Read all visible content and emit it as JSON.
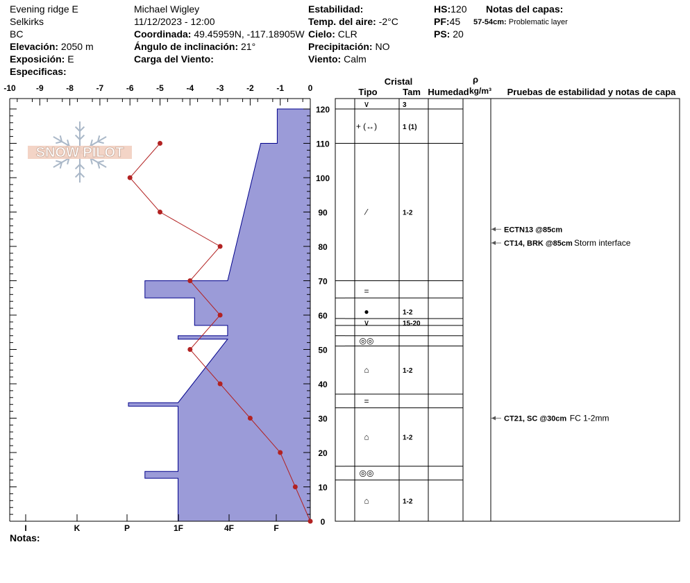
{
  "header": {
    "location": "Evening ridge E",
    "range": "Selkirks",
    "region": "BC",
    "elevation_label": "Elevación:",
    "elevation": "2050 m",
    "aspect_label": "Exposición:",
    "aspect": "E",
    "specifics_label": "Especificas:",
    "observer": "Michael Wigley",
    "datetime": "11/12/2023 - 12:00",
    "coord_label": "Coordinada:",
    "coords": "49.45959N, -117.18905W",
    "slope_label": "Ángulo de inclinación:",
    "slope": "21°",
    "wind_load_label": "Carga del Viento:",
    "stability_label": "Estabilidad:",
    "air_temp_label": "Temp. del aire:",
    "air_temp": "-2°C",
    "sky_label": "Cielo:",
    "sky": "CLR",
    "precip_label": "Precipitación:",
    "precip": "NO",
    "wind_label": "Viento:",
    "wind": "Calm",
    "hs_label": "HS:",
    "hs": "120",
    "pf_label": "PF:",
    "pf": "45",
    "ps_label": "PS:",
    "ps": "20",
    "layer_notes_label": "Notas del capas:",
    "layer_note_range": "57-54cm:",
    "layer_note_text": "Problematic layer",
    "notes_label": "Notas:"
  },
  "logo_text": "SNOW PILOT",
  "table_headers": {
    "crystal": "Cristal",
    "type": "Tipo",
    "size": "Tam",
    "moisture": "Humedad",
    "rho": "ρ",
    "density_unit": "kg/m³",
    "tests": "Pruebas de estabilidad y notas de capa"
  },
  "colors": {
    "hardness_fill": "#9b9bd8",
    "hardness_stroke": "#00008b",
    "temp_line": "#b22222"
  },
  "chart_data": {
    "type": "snow_profile",
    "temp_axis": {
      "ticks": [
        "-10",
        "-9",
        "-8",
        "-7",
        "-6",
        "-5",
        "-4",
        "-3",
        "-2",
        "-1",
        "0"
      ],
      "range": [
        -10,
        0
      ]
    },
    "hardness_axis": {
      "labels": [
        "I",
        "K",
        "P",
        "1F",
        "4F",
        "F"
      ]
    },
    "depth_axis": {
      "range": [
        0,
        120
      ],
      "ticks": [
        "0",
        "10",
        "20",
        "30",
        "40",
        "50",
        "60",
        "70",
        "80",
        "90",
        "100",
        "110",
        "120"
      ]
    },
    "temperature_profile": [
      {
        "depth": 0,
        "temp": 0
      },
      {
        "depth": 10,
        "temp": -0.5
      },
      {
        "depth": 20,
        "temp": -1
      },
      {
        "depth": 30,
        "temp": -2
      },
      {
        "depth": 40,
        "temp": -3
      },
      {
        "depth": 50,
        "temp": -4
      },
      {
        "depth": 60,
        "temp": -3
      },
      {
        "depth": 70,
        "temp": -4
      },
      {
        "depth": 80,
        "temp": -3
      },
      {
        "depth": 90,
        "temp": -5
      },
      {
        "depth": 100,
        "temp": -6
      },
      {
        "depth": 110,
        "temp": -5
      }
    ],
    "hardness_polygon": [
      {
        "depth": 0,
        "h": -4.4
      },
      {
        "depth": 12.5,
        "h": -4.4
      },
      {
        "depth": 12.5,
        "h": -5.5
      },
      {
        "depth": 14.5,
        "h": -5.5
      },
      {
        "depth": 14.5,
        "h": -4.4
      },
      {
        "depth": 33.5,
        "h": -4.4
      },
      {
        "depth": 33.5,
        "h": -6.05
      },
      {
        "depth": 34.5,
        "h": -6.05
      },
      {
        "depth": 34.5,
        "h": -4.4
      },
      {
        "depth": 53,
        "h": -2.75
      },
      {
        "depth": 53,
        "h": -4.4
      },
      {
        "depth": 54,
        "h": -4.4
      },
      {
        "depth": 54,
        "h": -2.75
      },
      {
        "depth": 57,
        "h": -2.75
      },
      {
        "depth": 57,
        "h": -3.85
      },
      {
        "depth": 65,
        "h": -3.85
      },
      {
        "depth": 65,
        "h": -5.5
      },
      {
        "depth": 70,
        "h": -5.5
      },
      {
        "depth": 70,
        "h": -2.75
      },
      {
        "depth": 110,
        "h": -1.65
      },
      {
        "depth": 110,
        "h": -1.1
      },
      {
        "depth": 120,
        "h": -1.1
      },
      {
        "depth": 120,
        "h": 0
      },
      {
        "depth": 0,
        "h": 0
      }
    ],
    "layer_boundaries": [
      120,
      110,
      70,
      65,
      59,
      57,
      54,
      51,
      37,
      33,
      16,
      12
    ],
    "layers": [
      {
        "mid": 124,
        "type": "∨",
        "size": "3"
      },
      {
        "mid": 115,
        "type": "+ (↔)",
        "size": "1 (1)"
      },
      {
        "mid": 90,
        "type": "⁄",
        "size": "1-2"
      },
      {
        "mid": 67,
        "type": "=",
        "size": ""
      },
      {
        "mid": 61,
        "type": "●",
        "size": "1-2"
      },
      {
        "mid": 57.8,
        "type": "∨",
        "size": "15-20"
      },
      {
        "mid": 52.5,
        "type": "◎◎",
        "size": ""
      },
      {
        "mid": 44,
        "type": "⌂",
        "size": "1-2"
      },
      {
        "mid": 35,
        "type": "=",
        "size": ""
      },
      {
        "mid": 24.5,
        "type": "⌂",
        "size": "1-2"
      },
      {
        "mid": 14,
        "type": "◎◎",
        "size": ""
      },
      {
        "mid": 6,
        "type": "⌂",
        "size": "1-2"
      }
    ],
    "tests": [
      {
        "depth": 85,
        "text": "ECTN13 @85cm",
        "note": ""
      },
      {
        "depth": 81,
        "text": "CT14, BRK @85cm",
        "note": "Storm interface"
      },
      {
        "depth": 30,
        "text": "CT21, SC @30cm",
        "note": "FC 1-2mm"
      }
    ]
  }
}
